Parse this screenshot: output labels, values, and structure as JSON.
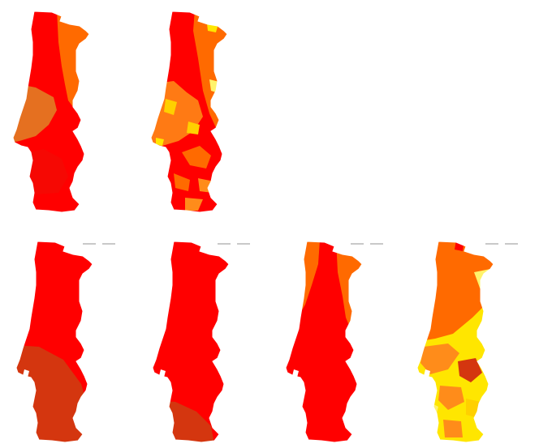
{
  "palette": {
    "red": "#ff0000",
    "deep_red": "#e8120c",
    "brick": "#d4360f",
    "orange": "#ff6a00",
    "amber": "#ff8c1a",
    "yellow": "#ffe600",
    "pale_yellow": "#fff36b"
  },
  "maps": [
    {
      "id": "top-1",
      "zones": [
        "red",
        "orange"
      ]
    },
    {
      "id": "top-2",
      "zones": [
        "red",
        "orange",
        "yellow"
      ]
    },
    {
      "id": "bottom-1",
      "zones": [
        "red",
        "brick"
      ]
    },
    {
      "id": "bottom-2",
      "zones": [
        "red",
        "brick"
      ]
    },
    {
      "id": "bottom-3",
      "zones": [
        "red",
        "orange"
      ]
    },
    {
      "id": "bottom-4",
      "zones": [
        "orange",
        "yellow",
        "red"
      ]
    }
  ]
}
